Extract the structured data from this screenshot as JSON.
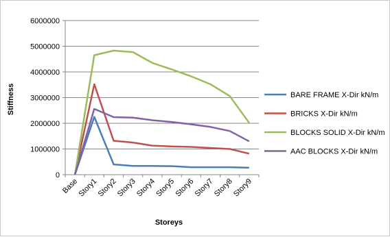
{
  "chart_data": {
    "type": "line",
    "title": "",
    "xlabel": "Storeys",
    "ylabel": "Stiffness",
    "categories": [
      "Base",
      "Story1",
      "Story2",
      "Story3",
      "Story4",
      "Story5",
      "Story6",
      "Story7",
      "Story8",
      "Story9"
    ],
    "ylim": [
      0,
      6000000
    ],
    "yticks": [
      0,
      1000000,
      2000000,
      3000000,
      4000000,
      5000000,
      6000000
    ],
    "ytick_labels": [
      "0",
      "1000000",
      "2000000",
      "3000000",
      "4000000",
      "5000000",
      "6000000"
    ],
    "grid": "horizontal",
    "legend_position": "right",
    "series": [
      {
        "name": "BARE FRAME X-Dir kN/m",
        "color": "#4a7ebb",
        "values": [
          0,
          2250000,
          400000,
          340000,
          340000,
          330000,
          290000,
          290000,
          290000,
          270000
        ]
      },
      {
        "name": "BRICKS X-Dir kN/m",
        "color": "#c0504d",
        "values": [
          0,
          3520000,
          1320000,
          1250000,
          1130000,
          1100000,
          1080000,
          1040000,
          1000000,
          820000
        ]
      },
      {
        "name": "BLOCKS SOLID X-Dir kN/m",
        "color": "#9bbb59",
        "values": [
          0,
          4650000,
          4830000,
          4770000,
          4350000,
          4100000,
          3830000,
          3520000,
          3060000,
          2020000
        ]
      },
      {
        "name": "AAC BLOCKS X-Dir kN/m",
        "color": "#7f62a2",
        "values": [
          0,
          2560000,
          2240000,
          2220000,
          2120000,
          2050000,
          1960000,
          1860000,
          1700000,
          1300000
        ]
      }
    ]
  }
}
